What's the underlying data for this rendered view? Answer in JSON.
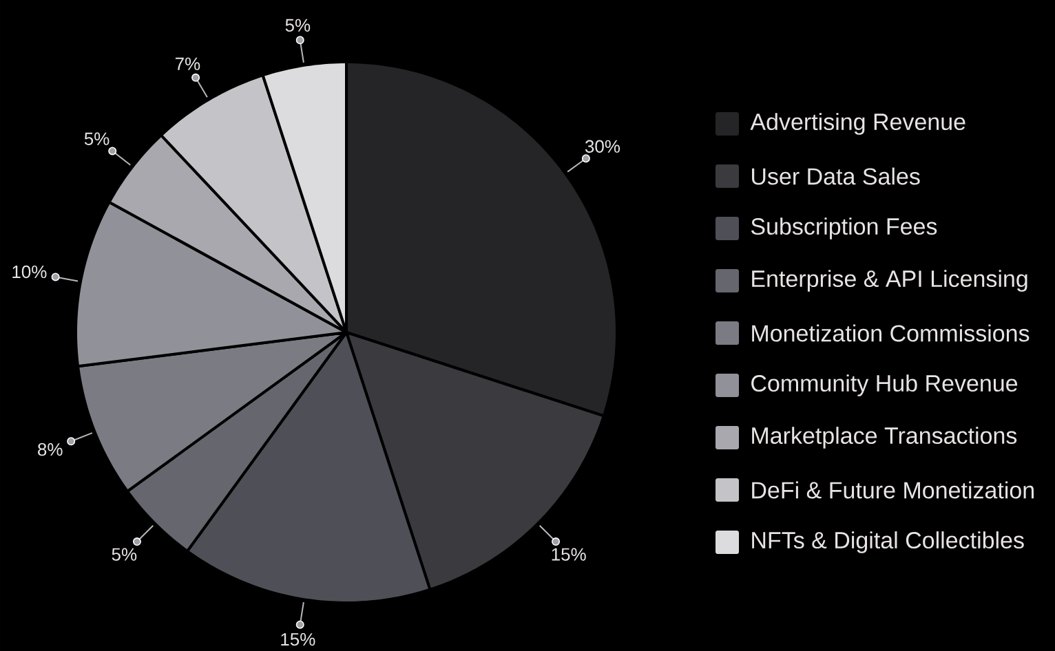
{
  "chart_data": {
    "type": "pie",
    "categories": [
      "Advertising Revenue",
      "User Data Sales",
      "Subscription Fees",
      "Enterprise & API Licensing",
      "Monetization Commissions",
      "Community Hub Revenue",
      "Marketplace Transactions",
      "DeFi & Future Monetization",
      "NFTs & Digital Collectibles"
    ],
    "values": [
      30,
      15,
      15,
      5,
      8,
      10,
      5,
      7,
      5
    ],
    "value_labels": [
      "30%",
      "15%",
      "15%",
      "5%",
      "8%",
      "10%",
      "5%",
      "7%",
      "5%"
    ],
    "colors": [
      "#252527",
      "#3a3a3f",
      "#4f5057",
      "#65666e",
      "#7b7b84",
      "#919199",
      "#a8a8ae",
      "#c3c3c8",
      "#dcdcde"
    ],
    "legend": "right"
  }
}
